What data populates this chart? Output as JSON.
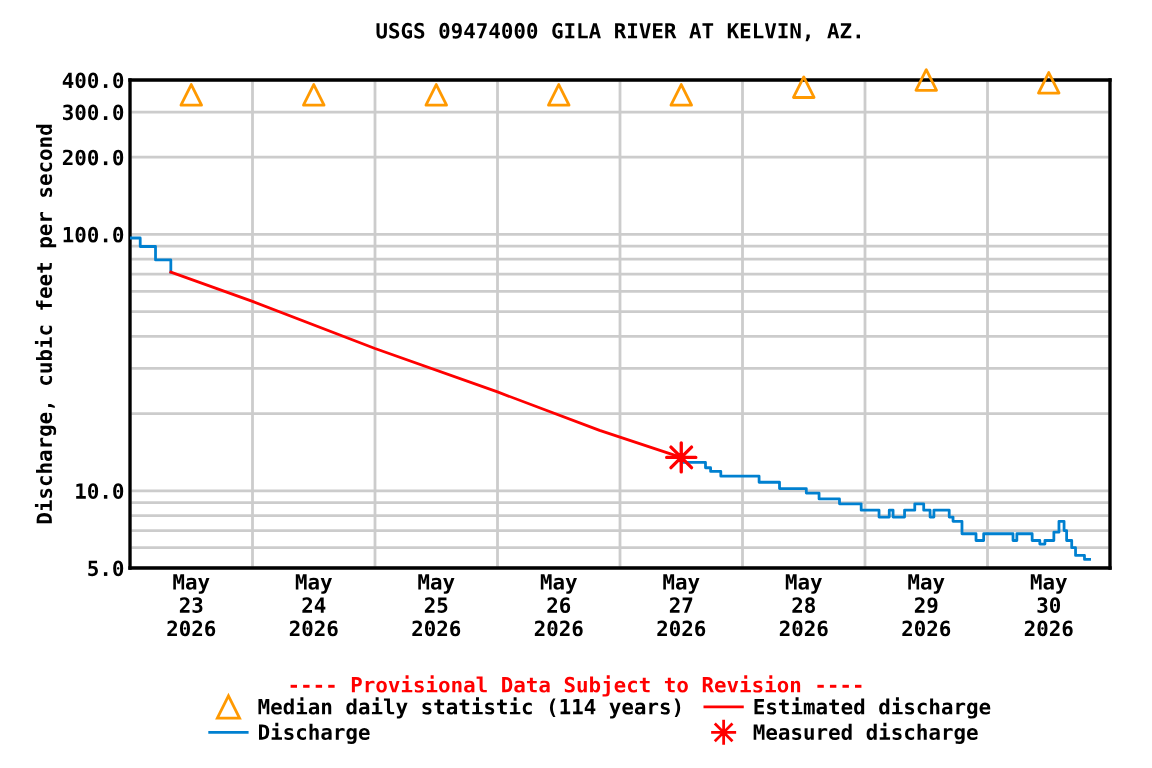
{
  "chart_data": {
    "type": "line",
    "title": "USGS 09474000 GILA RIVER AT KELVIN, AZ.",
    "ylabel": "Discharge, cubic feet per second",
    "log": "y",
    "grid": true,
    "legend": "bottom",
    "xlim": [
      "2026-05-23T00:00",
      "2026-05-31T00:00"
    ],
    "xticks": [
      {
        "value": "2026-05-23T00:00",
        "label": null
      },
      {
        "value": "2026-05-23T12:00",
        "label": "May\n23\n2026"
      },
      {
        "value": "2026-05-24T00:00",
        "label": null
      },
      {
        "value": "2026-05-24T12:00",
        "label": "May\n24\n2026"
      },
      {
        "value": "2026-05-25T00:00",
        "label": null
      },
      {
        "value": "2026-05-25T12:00",
        "label": "May\n25\n2026"
      },
      {
        "value": "2026-05-26T00:00",
        "label": null
      },
      {
        "value": "2026-05-26T12:00",
        "label": "May\n26\n2026"
      },
      {
        "value": "2026-05-27T00:00",
        "label": null
      },
      {
        "value": "2026-05-27T12:00",
        "label": "May\n27\n2026"
      },
      {
        "value": "2026-05-28T00:00",
        "label": null
      },
      {
        "value": "2026-05-28T12:00",
        "label": "May\n28\n2026"
      },
      {
        "value": "2026-05-29T00:00",
        "label": null
      },
      {
        "value": "2026-05-29T12:00",
        "label": "May\n29\n2026"
      },
      {
        "value": "2026-05-30T00:00",
        "label": null
      },
      {
        "value": "2026-05-30T12:00",
        "label": "May\n30\n2026"
      },
      {
        "value": "2026-05-31T00:00",
        "label": null
      }
    ],
    "ylim": [
      5,
      400
    ],
    "yticks": [
      {
        "value": 5,
        "label": "5.0"
      },
      {
        "value": 6,
        "label": null
      },
      {
        "value": 7,
        "label": null
      },
      {
        "value": 8,
        "label": null
      },
      {
        "value": 9,
        "label": null
      },
      {
        "value": 10,
        "label": "10.0"
      },
      {
        "value": 20,
        "label": null
      },
      {
        "value": 30,
        "label": null
      },
      {
        "value": 40,
        "label": null
      },
      {
        "value": 50,
        "label": null
      },
      {
        "value": 60,
        "label": null
      },
      {
        "value": 70,
        "label": null
      },
      {
        "value": 80,
        "label": null
      },
      {
        "value": 90,
        "label": null
      },
      {
        "value": 100,
        "label": "100.0"
      },
      {
        "value": 200,
        "label": "200.0"
      },
      {
        "value": 300,
        "label": "300.0"
      },
      {
        "value": 400,
        "label": "400.0"
      }
    ],
    "annotations": [
      "---- Provisional Data Subject to Revision ----"
    ],
    "series": [
      {
        "name": "Median daily statistic (114 years)",
        "type": "scatter",
        "marker": "triangle",
        "color": "#ff9900",
        "x": [
          "2026-05-23T12:00",
          "2026-05-24T12:00",
          "2026-05-25T12:00",
          "2026-05-26T12:00",
          "2026-05-27T12:00",
          "2026-05-28T12:00",
          "2026-05-29T12:00",
          "2026-05-30T12:00"
        ],
        "values": [
          350,
          350,
          350,
          350,
          350,
          375,
          400,
          390
        ]
      },
      {
        "name": "Discharge",
        "type": "step",
        "color": "#0080d0",
        "x": [
          "2026-05-23T00:00",
          "2026-05-23T02:00",
          "2026-05-23T05:00",
          "2026-05-23T08:00"
        ],
        "values": [
          96.8,
          89.7,
          79.5,
          71.3
        ]
      },
      {
        "type": "step",
        "color": "#0080d0",
        "x": [
          "2026-05-27T12:00",
          "2026-05-27T16:45",
          "2026-05-27T17:45",
          "2026-05-27T19:45",
          "2026-05-28T03:15",
          "2026-05-28T07:15",
          "2026-05-28T12:30",
          "2026-05-28T15:00",
          "2026-05-28T19:00",
          "2026-05-28T23:15",
          "2026-05-29T02:45",
          "2026-05-29T04:45",
          "2026-05-29T05:30",
          "2026-05-29T07:45",
          "2026-05-29T09:45",
          "2026-05-29T11:30",
          "2026-05-29T12:45",
          "2026-05-29T13:30",
          "2026-05-29T16:30",
          "2026-05-29T17:15",
          "2026-05-29T19:00",
          "2026-05-29T21:45",
          "2026-05-29T23:15",
          "2026-05-30T05:00",
          "2026-05-30T05:45",
          "2026-05-30T08:45",
          "2026-05-30T10:15",
          "2026-05-30T11:15",
          "2026-05-30T13:00",
          "2026-05-30T14:00",
          "2026-05-30T15:00",
          "2026-05-30T15:30",
          "2026-05-30T16:30",
          "2026-05-30T17:15",
          "2026-05-30T19:00",
          "2026-05-30T20:00"
        ],
        "values": [
          12.9,
          12.3,
          11.9,
          11.4,
          10.8,
          10.2,
          9.8,
          9.3,
          8.9,
          8.4,
          7.9,
          8.4,
          7.9,
          8.4,
          8.9,
          8.4,
          7.9,
          8.4,
          7.9,
          7.6,
          6.8,
          6.4,
          6.8,
          6.4,
          6.8,
          6.4,
          6.2,
          6.4,
          6.9,
          7.6,
          7.0,
          6.4,
          6.0,
          5.6,
          5.4,
          5.4
        ]
      },
      {
        "name": "Estimated discharge",
        "color": "#ff0000",
        "x": [
          "2026-05-23T08:00",
          "2026-05-24T00:00",
          "2026-05-25T00:00",
          "2026-05-26T00:00",
          "2026-05-26T20:00",
          "2026-05-27T12:00"
        ],
        "values": [
          71.3,
          54.8,
          35.9,
          24.3,
          17.2,
          13.5
        ]
      },
      {
        "name": "Measured discharge",
        "type": "scatter",
        "marker": "star",
        "color": "#ff0000",
        "x": [
          "2026-05-27T12:00"
        ],
        "values": [
          13.5
        ]
      }
    ]
  }
}
